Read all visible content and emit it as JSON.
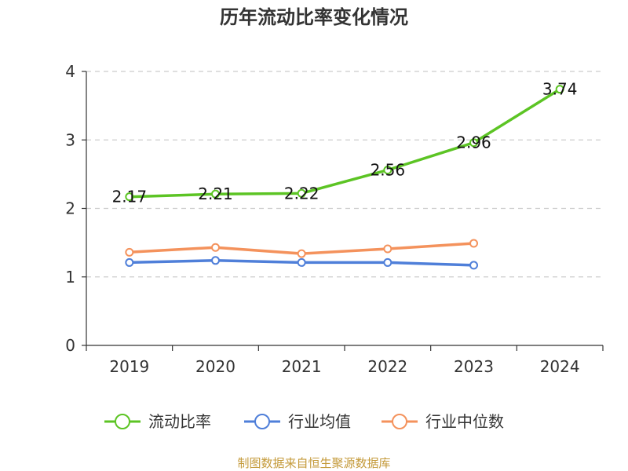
{
  "chart_data": {
    "type": "line",
    "title": "历年流动比率变化情况",
    "categories": [
      "2019",
      "2020",
      "2021",
      "2022",
      "2023",
      "2024"
    ],
    "ylim": [
      0,
      4
    ],
    "yticks": [
      "0",
      "1",
      "2",
      "3",
      "4"
    ],
    "grid": "horizontal-dashed",
    "legend_position": "bottom",
    "series": [
      {
        "name": "流动比率",
        "color": "#5cc424",
        "values": [
          2.17,
          2.21,
          2.22,
          2.56,
          2.96,
          3.74
        ],
        "labels": [
          "2.17",
          "2.21",
          "2.22",
          "2.56",
          "2.96",
          "3.74"
        ]
      },
      {
        "name": "行业均值",
        "color": "#4f7fd9",
        "values": [
          1.21,
          1.24,
          1.21,
          1.21,
          1.17,
          null
        ]
      },
      {
        "name": "行业中位数",
        "color": "#f4925c",
        "values": [
          1.36,
          1.43,
          1.34,
          1.41,
          1.49,
          null
        ]
      }
    ]
  },
  "footer": {
    "source": "制图数据来自恒生聚源数据库"
  }
}
